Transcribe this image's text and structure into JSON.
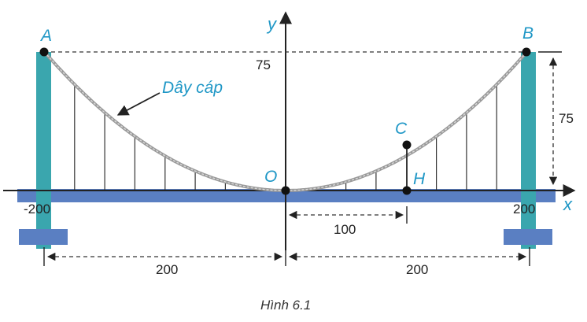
{
  "points": {
    "A": "A",
    "B": "B",
    "C": "C",
    "O": "O",
    "H": "H"
  },
  "axes": {
    "x_label": "x",
    "y_label": "y"
  },
  "values": {
    "y_top": "75",
    "right_height": "75",
    "left_x": "-200",
    "right_x": "200",
    "oh_distance": "100",
    "left_span": "200",
    "right_span": "200"
  },
  "cable_label": "Dây cáp",
  "caption": "Hình 6.1",
  "colors": {
    "tower": "#3aa6ae",
    "deck": "#5a7fc2",
    "label_blue": "#1f97c6",
    "cable": "#999999"
  }
}
